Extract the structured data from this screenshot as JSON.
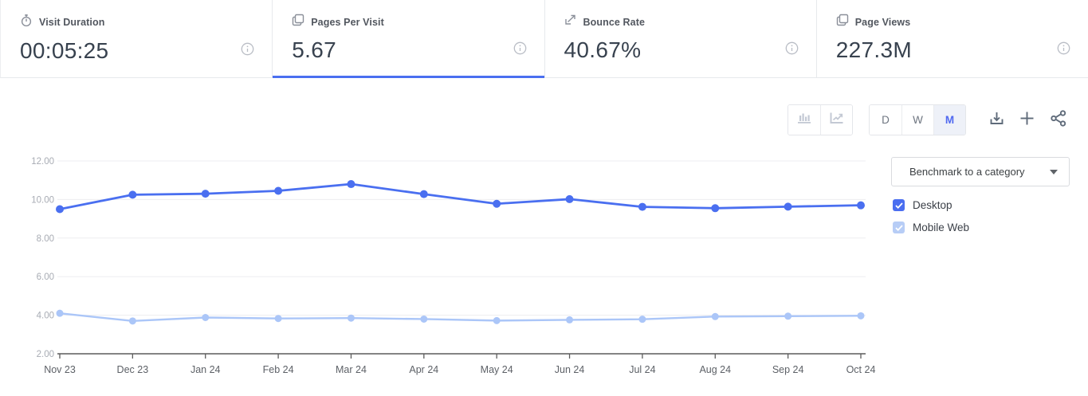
{
  "metrics": {
    "tabs": [
      {
        "label": "Visit Duration",
        "value": "00:05:25",
        "icon": "stopwatch-icon",
        "active": false
      },
      {
        "label": "Pages Per Visit",
        "value": "5.67",
        "icon": "pages-icon",
        "active": true
      },
      {
        "label": "Bounce Rate",
        "value": "40.67%",
        "icon": "bounce-arrow-icon",
        "active": false
      },
      {
        "label": "Page Views",
        "value": "227.3M",
        "icon": "pages-icon",
        "active": false
      }
    ]
  },
  "toolbar": {
    "chart_types": [
      {
        "name": "bar-chart",
        "active": false
      },
      {
        "name": "line-chart",
        "active": false
      }
    ],
    "granularity": [
      {
        "label": "D",
        "active": false
      },
      {
        "label": "W",
        "active": false
      },
      {
        "label": "M",
        "active": true
      }
    ],
    "actions": [
      "download",
      "add",
      "share"
    ]
  },
  "side_panel": {
    "benchmark_label": "Benchmark to a category",
    "legend": [
      {
        "label": "Desktop",
        "color": "#4a6ef0",
        "checked": true
      },
      {
        "label": "Mobile Web",
        "color": "#b7cdf6",
        "checked": true
      }
    ]
  },
  "colors": {
    "accent": "#4a6ff0",
    "mobile": "#abc6f8",
    "grid": "#ededf0",
    "axis": "#5c5c5c",
    "ytick_text": "#a8acb4",
    "xtick_text": "#5d6167"
  },
  "chart_data": {
    "type": "line",
    "x": [
      "Nov 23",
      "Dec 23",
      "Jan 24",
      "Feb 24",
      "Mar 24",
      "Apr 24",
      "May 24",
      "Jun 24",
      "Jul 24",
      "Aug 24",
      "Sep 24",
      "Oct 24"
    ],
    "series": [
      {
        "name": "Desktop",
        "color": "#4a6ff0",
        "point_radius": 5,
        "line_width": 2.8,
        "values": [
          9.5,
          10.25,
          10.3,
          10.45,
          10.8,
          10.28,
          9.78,
          10.02,
          9.62,
          9.55,
          9.63,
          9.7
        ]
      },
      {
        "name": "Mobile Web",
        "color": "#abc6f8",
        "point_radius": 4.5,
        "line_width": 2.4,
        "values": [
          4.1,
          3.7,
          3.88,
          3.83,
          3.85,
          3.8,
          3.72,
          3.76,
          3.79,
          3.93,
          3.95,
          3.97
        ]
      }
    ],
    "ylim": [
      2,
      12
    ],
    "yticks": [
      12,
      10,
      8,
      6,
      4,
      2
    ],
    "ytick_labels": [
      "12.00",
      "10.00",
      "8.00",
      "6.00",
      "4.00",
      "2.00"
    ],
    "title": "",
    "xlabel": "",
    "ylabel": "",
    "grid": true,
    "legend_position": "right"
  }
}
